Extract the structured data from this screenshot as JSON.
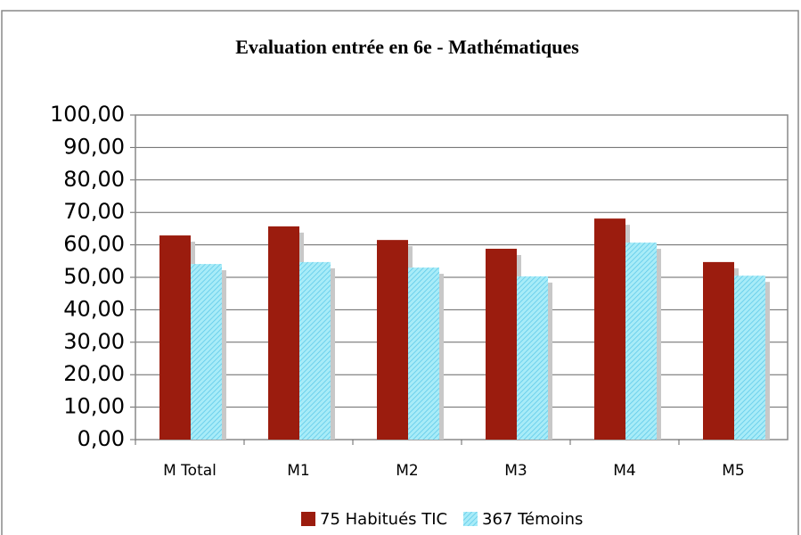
{
  "chart_data": {
    "type": "bar",
    "title": "Evaluation entrée en 6e - Mathématiques",
    "categories": [
      "M Total",
      "M1",
      "M2",
      "M3",
      "M4",
      "M5"
    ],
    "series": [
      {
        "name": "75 Habitués TIC",
        "color": "#9b1c0e",
        "values": [
          62.9,
          65.7,
          61.5,
          58.8,
          68.1,
          54.7
        ]
      },
      {
        "name": "367 Témoins",
        "color": "#a8ecf8",
        "values": [
          54.1,
          54.7,
          53.0,
          50.3,
          60.7,
          50.5
        ]
      }
    ],
    "ylim": [
      0,
      100
    ],
    "yticks": [
      {
        "value": 0,
        "label": "0,00"
      },
      {
        "value": 10,
        "label": "10,00"
      },
      {
        "value": 20,
        "label": "20,00"
      },
      {
        "value": 30,
        "label": "30,00"
      },
      {
        "value": 40,
        "label": "40,00"
      },
      {
        "value": 50,
        "label": "50,00"
      },
      {
        "value": 60,
        "label": "60,00"
      },
      {
        "value": 70,
        "label": "70,00"
      },
      {
        "value": 80,
        "label": "80,00"
      },
      {
        "value": 90,
        "label": "90,00"
      },
      {
        "value": 100,
        "label": "100,00"
      }
    ],
    "grid": true,
    "legend": "bottom"
  }
}
